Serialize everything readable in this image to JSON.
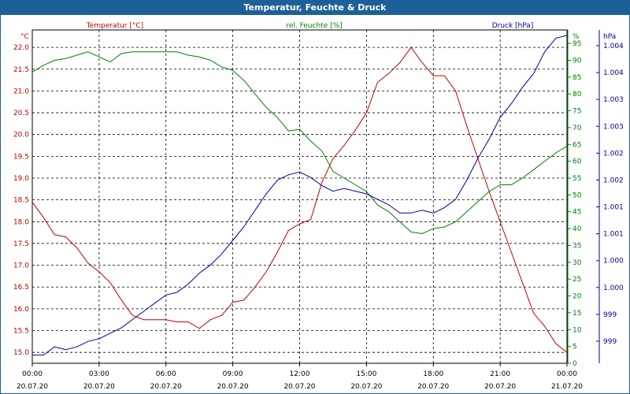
{
  "window": {
    "title": "Temperatur, Feuchte & Druck"
  },
  "colors": {
    "temperature": "#c00000",
    "humidity": "#008000",
    "pressure": "#00009c",
    "grid": "#000000",
    "titlebar": "#1d6098"
  },
  "chart_data": {
    "type": "line",
    "title": "Temperatur, Feuchte & Druck",
    "grid": true,
    "x_range": [
      "20.07.20 00:00",
      "21.07.20 00:00"
    ],
    "x_ticks": [
      {
        "time": "00:00",
        "date": "20.07.20"
      },
      {
        "time": "03:00",
        "date": "20.07.20"
      },
      {
        "time": "06:00",
        "date": "20.07.20"
      },
      {
        "time": "09:00",
        "date": "20.07.20"
      },
      {
        "time": "12:00",
        "date": "20.07.20"
      },
      {
        "time": "15:00",
        "date": "20.07.20"
      },
      {
        "time": "18:00",
        "date": "20.07.20"
      },
      {
        "time": "21:00",
        "date": "20.07.20"
      },
      {
        "time": "00:00",
        "date": "21.07.20"
      }
    ],
    "axes": {
      "temperature": {
        "label": "Temperatur [°C]",
        "unit": "°C",
        "range": [
          14.75,
          22.4
        ],
        "ticks": [
          "15.0",
          "15.5",
          "16.0",
          "16.5",
          "17.0",
          "17.5",
          "18.0",
          "18.5",
          "19.0",
          "19.5",
          "20.0",
          "20.5",
          "21.0",
          "21.5",
          "22.0"
        ]
      },
      "humidity": {
        "label": "rel. Feuchte [%]",
        "unit": "%",
        "range": [
          0,
          99
        ],
        "ticks": [
          "0",
          "5",
          "10",
          "15",
          "20",
          "25",
          "30",
          "35",
          "40",
          "45",
          "50",
          "55",
          "60",
          "65",
          "70",
          "75",
          "80",
          "85",
          "90",
          "95"
        ]
      },
      "pressure": {
        "label": "Druck [hPa]",
        "unit": "hPa",
        "range": [
          998.5,
          1004.6
        ],
        "ticks": [
          "999",
          "999",
          "1.000",
          "1.000",
          "1.001",
          "1.001",
          "1.002",
          "1.002",
          "1.003",
          "1.003",
          "1.004",
          "1.004"
        ]
      }
    },
    "series": [
      {
        "name": "Temperatur [°C]",
        "axis": "temperature",
        "x": [
          0,
          0.5,
          1,
          1.5,
          2,
          2.5,
          3,
          3.5,
          4,
          4.5,
          5,
          5.5,
          6,
          6.5,
          7,
          7.5,
          8,
          8.5,
          9,
          9.5,
          10,
          10.5,
          11,
          11.5,
          12,
          12.5,
          13,
          13.5,
          14,
          14.5,
          15,
          15.5,
          16,
          16.5,
          17,
          17.5,
          18,
          18.5,
          19,
          19.5,
          20,
          20.5,
          21,
          21.5,
          22,
          22.5,
          23,
          23.5,
          24
        ],
        "y": [
          18.45,
          18.1,
          17.7,
          17.65,
          17.4,
          17.05,
          16.85,
          16.6,
          16.2,
          15.85,
          15.75,
          15.75,
          15.75,
          15.7,
          15.7,
          15.55,
          15.75,
          15.85,
          16.15,
          16.2,
          16.5,
          16.85,
          17.3,
          17.8,
          17.95,
          18.05,
          18.9,
          19.45,
          19.75,
          20.1,
          20.5,
          21.2,
          21.4,
          21.65,
          22.0,
          21.65,
          21.35,
          21.35,
          21.0,
          20.2,
          19.45,
          18.7,
          18.0,
          17.3,
          16.6,
          15.9,
          15.6,
          15.2,
          15.0
        ]
      },
      {
        "name": "rel. Feuchte [%]",
        "axis": "humidity",
        "x": [
          0,
          0.5,
          1,
          1.5,
          2,
          2.5,
          3,
          3.5,
          4,
          4.5,
          5,
          5.5,
          6,
          6.5,
          7,
          7.5,
          8,
          8.5,
          9,
          9.5,
          10,
          10.5,
          11,
          11.5,
          12,
          12.5,
          13,
          13.5,
          14,
          14.5,
          15,
          15.5,
          16,
          16.5,
          17,
          17.5,
          18,
          18.5,
          19,
          19.5,
          20,
          20.5,
          21,
          21.5,
          22,
          22.5,
          23,
          23.5,
          24
        ],
        "y": [
          86.5,
          88.5,
          90,
          90.5,
          91.5,
          92.5,
          91,
          89.5,
          92,
          92.5,
          92.5,
          92.5,
          92.5,
          92.5,
          91.5,
          91,
          90,
          88,
          87,
          84,
          80,
          76,
          73,
          69,
          69.5,
          66,
          63,
          57,
          55,
          53,
          51,
          47,
          45,
          42,
          39,
          38.5,
          40,
          40.5,
          42,
          45,
          48,
          51,
          53,
          53,
          55,
          57.5,
          60,
          62.5,
          64.5
        ]
      },
      {
        "name": "Druck [hPa]",
        "axis": "pressure",
        "x": [
          0,
          0.5,
          1,
          1.5,
          2,
          2.5,
          3,
          3.5,
          4,
          4.5,
          5,
          5.5,
          6,
          6.5,
          7,
          7.5,
          8,
          8.5,
          9,
          9.5,
          10,
          10.5,
          11,
          11.5,
          12,
          12.5,
          13,
          13.5,
          14,
          14.5,
          15,
          15.5,
          16,
          16.5,
          17,
          17.5,
          18,
          18.5,
          19,
          19.5,
          20,
          20.5,
          21,
          21.5,
          22,
          22.5,
          23,
          23.5,
          24
        ],
        "y": [
          998.65,
          998.65,
          998.8,
          998.75,
          998.8,
          998.9,
          998.95,
          999.05,
          999.15,
          999.3,
          999.45,
          999.6,
          999.75,
          999.8,
          999.95,
          1000.15,
          1000.3,
          1000.5,
          1000.75,
          1001.0,
          1001.3,
          1001.6,
          1001.85,
          1001.95,
          1002.0,
          1001.9,
          1001.75,
          1001.65,
          1001.7,
          1001.65,
          1001.6,
          1001.5,
          1001.4,
          1001.25,
          1001.25,
          1001.3,
          1001.25,
          1001.35,
          1001.5,
          1001.85,
          1002.25,
          1002.6,
          1003.0,
          1003.25,
          1003.55,
          1003.8,
          1004.2,
          1004.45,
          1004.5
        ]
      }
    ]
  }
}
